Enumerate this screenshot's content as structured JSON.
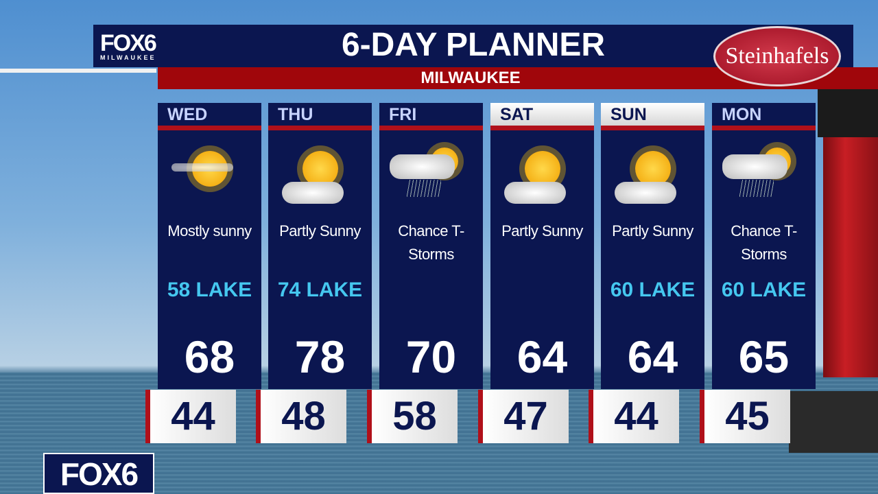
{
  "brand": {
    "logo": "FOX6",
    "logo_sub": "MILWAUKEE",
    "bottom_logo": "FOX6"
  },
  "header": {
    "title": "6-DAY PLANNER",
    "city": "MILWAUKEE",
    "sponsor": "Steinhafels"
  },
  "colors": {
    "navy": "#0b1650",
    "red": "#a0060b",
    "lake_text": "#45c7ef"
  },
  "days": [
    {
      "day": "WED",
      "weekend": false,
      "icon": "sun-haze-icon",
      "condition": "Mostly sunny",
      "lake": "58 LAKE",
      "high": "68",
      "low": "44"
    },
    {
      "day": "THU",
      "weekend": false,
      "icon": "partly-sunny-icon",
      "condition": "Partly Sunny",
      "lake": "74 LAKE",
      "high": "78",
      "low": "48"
    },
    {
      "day": "FRI",
      "weekend": false,
      "icon": "thunderstorm-icon",
      "condition": "Chance T-Storms",
      "lake": "",
      "high": "70",
      "low": "58"
    },
    {
      "day": "SAT",
      "weekend": true,
      "icon": "partly-sunny-icon",
      "condition": "Partly Sunny",
      "lake": "",
      "high": "64",
      "low": "47"
    },
    {
      "day": "SUN",
      "weekend": true,
      "icon": "partly-sunny-icon",
      "condition": "Partly Sunny",
      "lake": "60 LAKE",
      "high": "64",
      "low": "44"
    },
    {
      "day": "MON",
      "weekend": false,
      "icon": "thunderstorm-icon",
      "condition": "Chance T-Storms",
      "lake": "60 LAKE",
      "high": "65",
      "low": "45"
    }
  ]
}
